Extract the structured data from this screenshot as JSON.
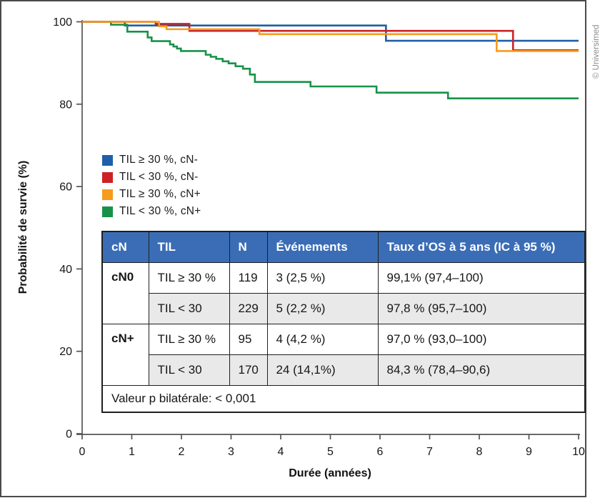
{
  "figure": {
    "credit": "© Universimed",
    "colors": {
      "blue": "#1e5fa9",
      "red": "#cc2127",
      "orange": "#f79b1c",
      "green": "#179248",
      "table_header_bg": "#3a6db5",
      "table_row_alt": "#e9e9e9",
      "axis": "#545456",
      "frame_border": "#4a4a4a",
      "credit_gray": "#8c8c8c"
    }
  },
  "chart_data": {
    "type": "line",
    "subtype": "kaplan-meier-step",
    "xlabel": "Durée (années)",
    "ylabel": "Probabilité de survie (%)",
    "xlim": [
      0,
      10
    ],
    "ylim": [
      0,
      100
    ],
    "xticks": [
      0,
      1,
      2,
      3,
      4,
      5,
      6,
      7,
      8,
      9,
      10
    ],
    "yticks": [
      0,
      20,
      40,
      60,
      80,
      100
    ],
    "grid": false,
    "legend_position": "inside-left-middle",
    "draw_order": [
      0,
      3,
      1,
      2
    ],
    "series": [
      {
        "name": "TIL ≥ 30 %, cN-",
        "color": "#1e5fa9",
        "steps": [
          [
            0,
            100
          ],
          [
            0.86,
            99.1
          ],
          [
            6.12,
            95.4
          ],
          [
            10,
            95.4
          ]
        ]
      },
      {
        "name": "TIL < 30 %, cN-",
        "color": "#cc2127",
        "steps": [
          [
            0,
            100
          ],
          [
            1.48,
            99.5
          ],
          [
            2.16,
            97.8
          ],
          [
            8.68,
            93.1
          ],
          [
            10,
            93.1
          ]
        ]
      },
      {
        "name": "TIL ≥ 30 %, cN+",
        "color": "#f79b1c",
        "steps": [
          [
            0,
            100
          ],
          [
            1.55,
            98.9
          ],
          [
            1.7,
            98.2
          ],
          [
            3.57,
            97.0
          ],
          [
            8.35,
            92.9
          ],
          [
            10,
            92.9
          ]
        ]
      },
      {
        "name": "TIL < 30 %, cN+",
        "color": "#179248",
        "steps": [
          [
            0,
            100
          ],
          [
            0.58,
            99.3
          ],
          [
            0.91,
            97.6
          ],
          [
            1.32,
            96.2
          ],
          [
            1.4,
            95.3
          ],
          [
            1.77,
            94.5
          ],
          [
            1.84,
            94.0
          ],
          [
            1.91,
            93.5
          ],
          [
            1.99,
            92.9
          ],
          [
            2.49,
            92.0
          ],
          [
            2.59,
            91.5
          ],
          [
            2.7,
            91.0
          ],
          [
            2.83,
            90.4
          ],
          [
            2.95,
            89.9
          ],
          [
            3.09,
            89.2
          ],
          [
            3.24,
            88.6
          ],
          [
            3.38,
            87.2
          ],
          [
            3.48,
            85.4
          ],
          [
            4.6,
            84.3
          ],
          [
            5.93,
            82.8
          ],
          [
            7.37,
            81.4
          ],
          [
            10,
            81.4
          ]
        ]
      }
    ]
  },
  "table": {
    "headers": [
      "cN",
      "TIL",
      "N",
      "Événements",
      "Taux d’OS à 5 ans (IC à 95 %)"
    ],
    "rows": [
      {
        "cn": "cN0",
        "til": "TIL ≥ 30 %",
        "n": "119",
        "events": "3 (2,5 %)",
        "os": "99,1% (97,4–100)"
      },
      {
        "cn": "",
        "til": "TIL < 30",
        "n": "229",
        "events": "5 (2,2 %)",
        "os": "97,8 % (95,7–100)"
      },
      {
        "cn": "cN+",
        "til": "TIL ≥ 30 %",
        "n": "95",
        "events": "4 (4,2 %)",
        "os": "97,0 % (93,0–100)"
      },
      {
        "cn": "",
        "til": "TIL < 30",
        "n": "170",
        "events": "24 (14,1%)",
        "os": "84,3 % (78,4–90,6)"
      }
    ],
    "footer": "Valeur p bilatérale: < 0,001"
  }
}
